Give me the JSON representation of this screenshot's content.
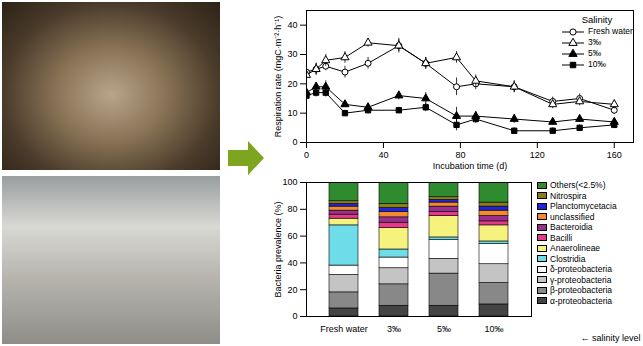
{
  "chart_data": [
    {
      "type": "line",
      "x_label": "Incubation time (d)",
      "y_label": "Respiration rate (mgC·m⁻²·h⁻¹)",
      "legend_title": "Salinity",
      "legend": "top-right",
      "x": [
        0,
        5,
        10,
        20,
        32,
        48,
        62,
        78,
        88,
        108,
        128,
        142,
        160
      ],
      "xlim": [
        0,
        170
      ],
      "xticks": [
        0,
        40,
        80,
        120,
        160
      ],
      "ylim": [
        0,
        45
      ],
      "yticks": [
        0,
        10,
        20,
        30,
        40
      ],
      "series": [
        {
          "name": "Fresh water",
          "color": "#000000",
          "marker": "circle-open",
          "values": [
            24,
            25,
            26,
            24,
            27,
            33,
            27,
            19,
            20,
            19,
            14,
            15,
            11
          ],
          "errors": [
            2,
            2,
            1.5,
            2,
            2,
            2.5,
            2,
            3,
            2,
            2,
            1.5,
            1.5,
            1.5
          ]
        },
        {
          "name": "3‰",
          "color": "#000000",
          "marker": "triangle-open",
          "values": [
            23,
            25,
            28,
            29,
            34,
            33,
            27,
            29,
            21,
            19,
            13,
            14,
            13
          ],
          "errors": [
            1.5,
            2,
            2,
            2,
            1.5,
            2,
            2,
            2,
            2,
            2,
            1.5,
            1.5,
            1.5
          ]
        },
        {
          "name": "5‰",
          "color": "#000000",
          "marker": "triangle",
          "values": [
            17,
            19,
            19,
            13,
            12,
            16,
            15,
            9,
            9,
            8,
            7,
            8,
            7
          ],
          "errors": [
            1.5,
            1.5,
            2,
            1,
            1,
            1.5,
            2,
            3,
            1.5,
            1.5,
            1,
            1,
            1
          ]
        },
        {
          "name": "10‰",
          "color": "#000000",
          "marker": "square",
          "values": [
            16,
            17,
            17,
            10,
            11,
            11,
            12,
            6,
            8,
            4,
            4,
            5,
            6
          ],
          "errors": [
            1.5,
            1.5,
            1.5,
            1,
            1,
            1,
            1.5,
            2,
            1.5,
            1,
            1,
            1,
            1
          ]
        }
      ]
    },
    {
      "type": "bar",
      "stacked": true,
      "x_label": "← salinity level",
      "y_label": "Bacteria prevalence (%)",
      "legend": "right",
      "categories": [
        "Fresh water",
        "3‰",
        "5‰",
        "10‰"
      ],
      "ylim": [
        0,
        100
      ],
      "yticks": [
        0,
        20,
        40,
        60,
        80,
        100
      ],
      "series": [
        {
          "name": "α-proteobacteria",
          "color": "#444444",
          "values": [
            6,
            8,
            8,
            9
          ]
        },
        {
          "name": "β-proteobacteria",
          "color": "#888888",
          "values": [
            12,
            16,
            24,
            16
          ]
        },
        {
          "name": "γ-proteobacteria",
          "color": "#c4c4c4",
          "values": [
            13,
            12,
            11,
            14
          ]
        },
        {
          "name": "δ-proteobacteria",
          "color": "#ffffff",
          "values": [
            7,
            8,
            14,
            15
          ]
        },
        {
          "name": "Clostridia",
          "color": "#6fdcea",
          "values": [
            30,
            6,
            2,
            2
          ]
        },
        {
          "name": "Anaerolineae",
          "color": "#f6f27e",
          "values": [
            5,
            16,
            16,
            12
          ]
        },
        {
          "name": "Bacilli",
          "color": "#e8388a",
          "values": [
            3,
            4,
            3,
            3
          ]
        },
        {
          "name": "Bacteroidia",
          "color": "#9a2f8e",
          "values": [
            3,
            4,
            4,
            4
          ]
        },
        {
          "name": "unclassified",
          "color": "#f28a30",
          "values": [
            3,
            4,
            3,
            4
          ]
        },
        {
          "name": "Planctomycetacia",
          "color": "#2323dd",
          "values": [
            2,
            3,
            2,
            3
          ]
        },
        {
          "name": "Nitrospira",
          "color": "#8b7d1a",
          "values": [
            2,
            3,
            2,
            3
          ]
        },
        {
          "name": "Others(<2.5%)",
          "color": "#2e8b2e",
          "values": [
            14,
            16,
            11,
            15
          ]
        }
      ]
    }
  ]
}
